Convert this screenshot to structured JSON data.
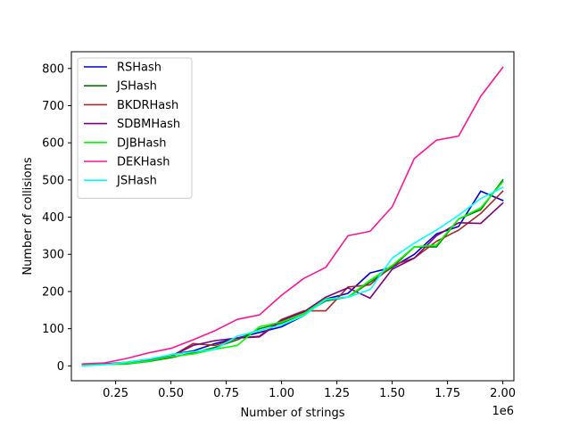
{
  "chart_data": {
    "type": "line",
    "title": "",
    "xlabel": "Number of strings",
    "ylabel": "Number of collisions",
    "x_offset_label": "1e6",
    "xlim": [
      0.05,
      2.05
    ],
    "ylim": [
      -40,
      845
    ],
    "xticks": [
      0.25,
      0.5,
      0.75,
      1.0,
      1.25,
      1.5,
      1.75,
      2.0
    ],
    "xtick_labels": [
      "0.25",
      "0.50",
      "0.75",
      "1.00",
      "1.25",
      "1.50",
      "1.75",
      "2.00"
    ],
    "yticks": [
      0,
      100,
      200,
      300,
      400,
      500,
      600,
      700,
      800
    ],
    "ytick_labels": [
      "0",
      "100",
      "200",
      "300",
      "400",
      "500",
      "600",
      "700",
      "800"
    ],
    "grid": false,
    "legend_position": "top-left",
    "x": [
      0.1,
      0.2,
      0.3,
      0.4,
      0.5,
      0.6,
      0.7,
      0.8,
      0.9,
      1.0,
      1.1,
      1.2,
      1.3,
      1.4,
      1.5,
      1.6,
      1.7,
      1.8,
      1.9,
      2.0
    ],
    "series": [
      {
        "name": "RSHash",
        "color": "#0000cd",
        "values": [
          3,
          5,
          8,
          15,
          30,
          40,
          60,
          75,
          90,
          105,
          135,
          180,
          195,
          250,
          265,
          300,
          355,
          375,
          470,
          445
        ]
      },
      {
        "name": "JSHash",
        "color": "#008000",
        "values": [
          2,
          4,
          5,
          12,
          22,
          35,
          50,
          70,
          100,
          115,
          140,
          175,
          185,
          225,
          265,
          320,
          320,
          395,
          420,
          500
        ]
      },
      {
        "name": "BKDRHash",
        "color": "#a52a2a",
        "values": [
          2,
          5,
          10,
          18,
          25,
          60,
          55,
          75,
          80,
          125,
          148,
          148,
          212,
          218,
          270,
          290,
          335,
          365,
          410,
          470
        ]
      },
      {
        "name": "SDBMHash",
        "color": "#800080",
        "values": [
          3,
          5,
          8,
          15,
          25,
          55,
          68,
          75,
          78,
          122,
          145,
          185,
          210,
          182,
          260,
          290,
          350,
          385,
          383,
          438
        ]
      },
      {
        "name": "DJBHash",
        "color": "#00ff00",
        "values": [
          2,
          4,
          6,
          13,
          25,
          32,
          45,
          55,
          105,
          118,
          140,
          180,
          185,
          230,
          270,
          320,
          325,
          395,
          425,
          495
        ]
      },
      {
        "name": "DEKHash",
        "color": "#ff1493",
        "values": [
          5,
          8,
          20,
          35,
          47,
          70,
          95,
          125,
          137,
          190,
          235,
          265,
          350,
          362,
          428,
          558,
          607,
          618,
          725,
          803
        ]
      },
      {
        "name": "JSHash",
        "color": "#00ffff",
        "values": [
          0,
          3,
          10,
          18,
          30,
          38,
          45,
          80,
          95,
          110,
          135,
          178,
          185,
          205,
          290,
          330,
          365,
          405,
          450,
          480
        ]
      }
    ]
  }
}
